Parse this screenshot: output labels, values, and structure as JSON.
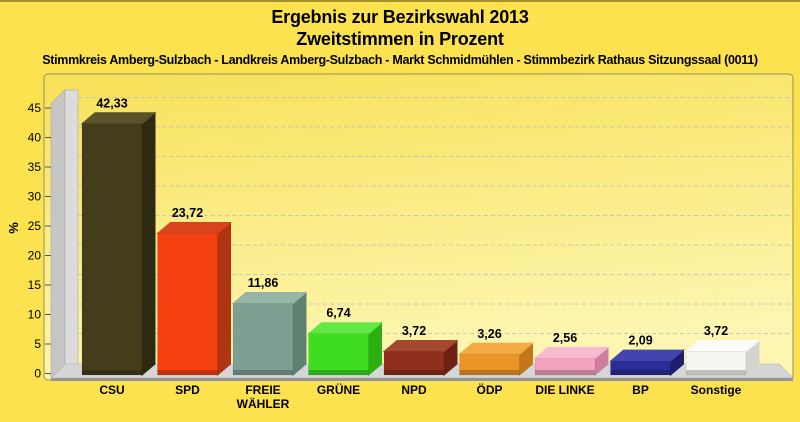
{
  "header": {
    "title_line1": "Ergebnis zur Bezirkswahl 2013",
    "title_line2": "Zweitstimmen in Prozent",
    "subtitle": "Stimmkreis Amberg-Sulzbach - Landkreis Amberg-Sulzbach - Markt Schmidmühlen - Stimmbezirk Rathaus Sitzungssaal (0011)"
  },
  "chart_data": {
    "type": "bar",
    "style": "3d",
    "title": "Ergebnis zur Bezirkswahl 2013 - Zweitstimmen in Prozent",
    "xlabel": "",
    "ylabel": "%",
    "ylim": [
      0,
      45
    ],
    "ytick_step": 5,
    "ytick_labels": [
      "0",
      "5",
      "10",
      "15",
      "20",
      "25",
      "30",
      "35",
      "40",
      "45"
    ],
    "grid": "dashed horizontal",
    "legend": "none",
    "categories": [
      "CSU",
      "SPD",
      "FREIE WÄHLER",
      "GRÜNE",
      "NPD",
      "ÖDP",
      "DIE LINKE",
      "BP",
      "Sonstige"
    ],
    "category_lines": [
      [
        "CSU"
      ],
      [
        "SPD"
      ],
      [
        "FREIE",
        "WÄHLER"
      ],
      [
        "GRÜNE"
      ],
      [
        "NPD"
      ],
      [
        "ÖDP"
      ],
      [
        "DIE LINKE"
      ],
      [
        "BP"
      ],
      [
        "Sonstige"
      ]
    ],
    "values": [
      42.33,
      23.72,
      11.86,
      6.74,
      3.72,
      3.26,
      2.56,
      2.09,
      3.72
    ],
    "value_labels": [
      "42,33",
      "23,72",
      "11,86",
      "6,74",
      "3,72",
      "3,26",
      "2,56",
      "2,09",
      "3,72"
    ],
    "bar_colors": [
      {
        "front": "#433d1c",
        "top": "#59522a",
        "side": "#2e2a12"
      },
      {
        "front": "#f5400f",
        "top": "#d8441d",
        "side": "#ae3412"
      },
      {
        "front": "#7da092",
        "top": "#95b5a6",
        "side": "#5f8170"
      },
      {
        "front": "#3fdd20",
        "top": "#63e744",
        "side": "#2daf12"
      },
      {
        "front": "#8e2e1d",
        "top": "#a44830",
        "side": "#6d2114"
      },
      {
        "front": "#eb9428",
        "top": "#f2ab45",
        "side": "#c5761a"
      },
      {
        "front": "#f4a3bf",
        "top": "#f7bad0",
        "side": "#cf7f9e"
      },
      {
        "front": "#2b2c95",
        "top": "#4345ad",
        "side": "#1d1e6e"
      },
      {
        "front": "#f6f6f1",
        "top": "#fbfbf9",
        "side": "#d5d5cd"
      }
    ]
  },
  "colors": {
    "page_background": "#fbe24e",
    "panel_gradient_top": "#f8e158",
    "panel_gradient_bottom": "#fdf6b2",
    "panel_border": "#a89f62",
    "wall_face": "#dcdcdc",
    "wall_bevel": "#c6c6c6",
    "floor_top": "#d6d6d6",
    "floor_edge": "#959595",
    "gridline": "#bfbfbf",
    "tick": "#555555",
    "text": "#000000"
  }
}
